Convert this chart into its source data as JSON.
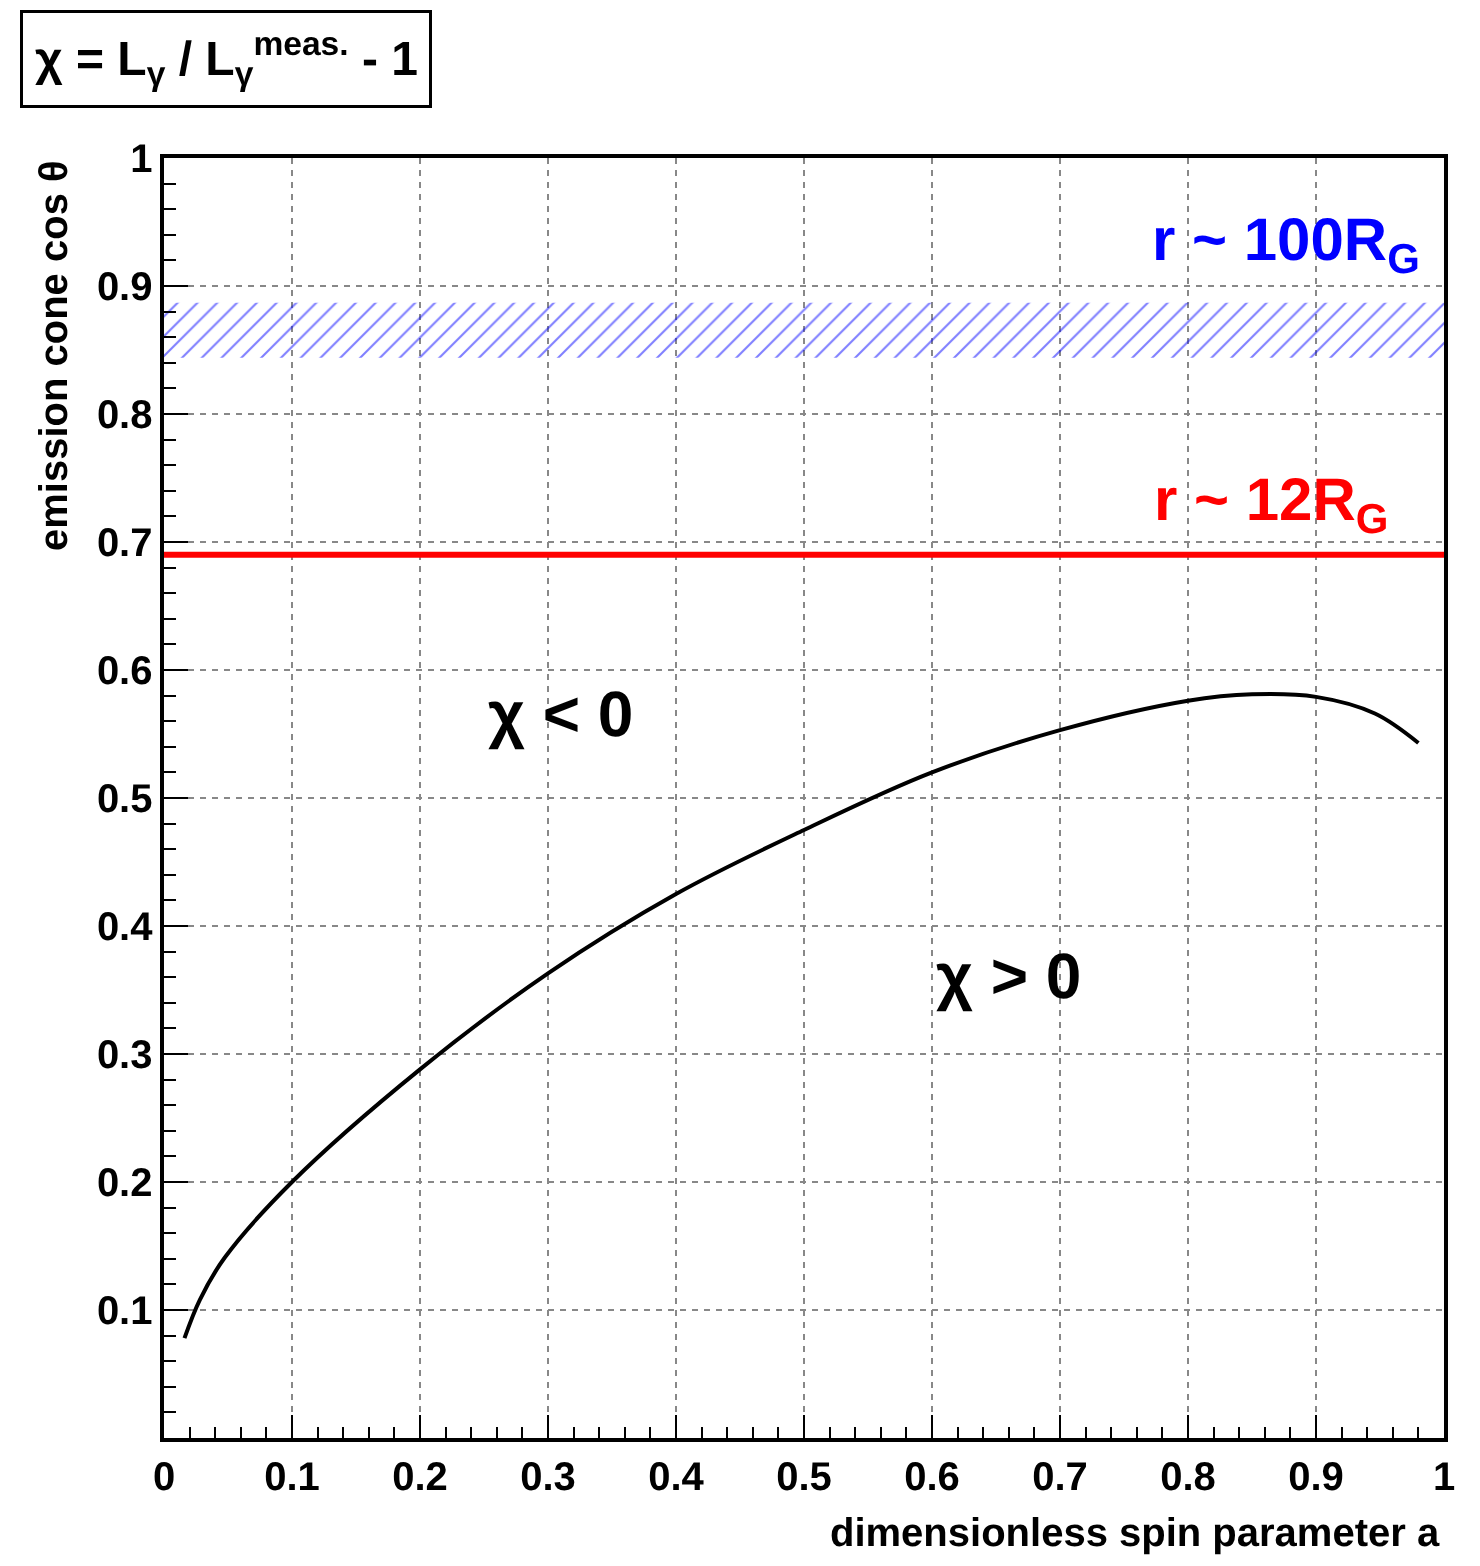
{
  "chart_data": {
    "type": "line",
    "title": "χ = L$_{γ}$ / L$_{γ}$$^{meas.}$ - 1",
    "xlabel": "dimensionless spin parameter a",
    "ylabel": "emission cone cos θ",
    "x": [
      0.016,
      0.028,
      0.0475,
      0.1,
      0.2,
      0.3,
      0.4,
      0.5,
      0.6,
      0.7,
      0.8,
      0.85,
      0.9,
      0.946,
      0.98
    ],
    "series": [
      {
        "color": "#000000",
        "values": [
          0.078,
          0.108,
          0.141,
          0.2,
          0.288,
          0.363,
          0.425,
          0.475,
          0.52,
          0.553,
          0.576,
          0.581,
          0.579,
          0.566,
          0.543
        ]
      }
    ],
    "xlim": [
      0,
      1
    ],
    "xticks": [
      0,
      0.1,
      0.2,
      0.3,
      0.4,
      0.5,
      0.6,
      0.7,
      0.8,
      0.9,
      1
    ],
    "ylim": [
      0,
      1
    ],
    "yticks": [
      0.1,
      0.2,
      0.3,
      0.4,
      0.5,
      0.6,
      0.7,
      0.8,
      0.9,
      1
    ],
    "ref_lines": [
      {
        "axis": "y",
        "value": 0.69,
        "label": "r ~ 12R$_{G}$",
        "color": "#ff0000"
      }
    ],
    "bands": [
      {
        "axis": "y",
        "from": 0.844,
        "to": 0.887,
        "label": "r ~ 100R$_{G}$",
        "color": "#0000ff"
      }
    ],
    "annotations": [
      "χ < 0",
      "χ > 0"
    ],
    "grid": true,
    "marker": "none",
    "line_style": "solid"
  }
}
